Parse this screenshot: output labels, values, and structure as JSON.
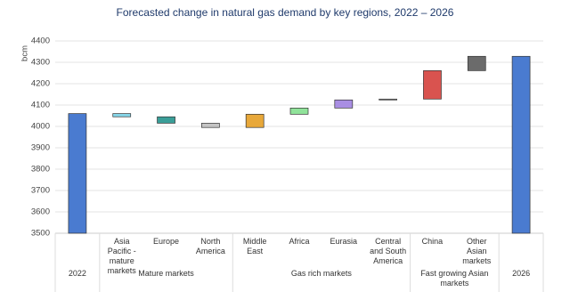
{
  "chart_data": {
    "type": "waterfall",
    "title": "Forecasted change in natural gas demand by key regions, 2022 – 2026",
    "y_label": "bcm",
    "categories": [
      null,
      "Asia Pacific - mature markets",
      "Europe",
      "North America",
      "Middle East",
      "Africa",
      "Eurasia",
      "Central and South America",
      "China",
      "Other Asian markets",
      null
    ],
    "values": [
      4060,
      -15,
      -30,
      -20,
      62,
      29,
      38,
      4,
      133,
      67,
      4328
    ],
    "colors": [
      "#4a7bd0",
      "#86d7ea",
      "#3a9e98",
      "#c4c4c4",
      "#e8a83a",
      "#90e39a",
      "#a98ee3",
      "#9a9a9a",
      "#d9534f",
      "#6b6b6b",
      "#4a7bd0"
    ],
    "groups": [
      {
        "name": "2022",
        "count": 1
      },
      {
        "name": "Mature markets",
        "count": 3
      },
      {
        "name": "Gas rich markets",
        "count": 4
      },
      {
        "name": "Fast growing Asian markets",
        "count": 2
      },
      {
        "name": "2026",
        "count": 1
      }
    ],
    "ylim": [
      3500,
      4400
    ],
    "yticks": [
      3500,
      3600,
      3700,
      3800,
      3900,
      4000,
      4100,
      4200,
      4300,
      4400
    ],
    "grid": true
  }
}
